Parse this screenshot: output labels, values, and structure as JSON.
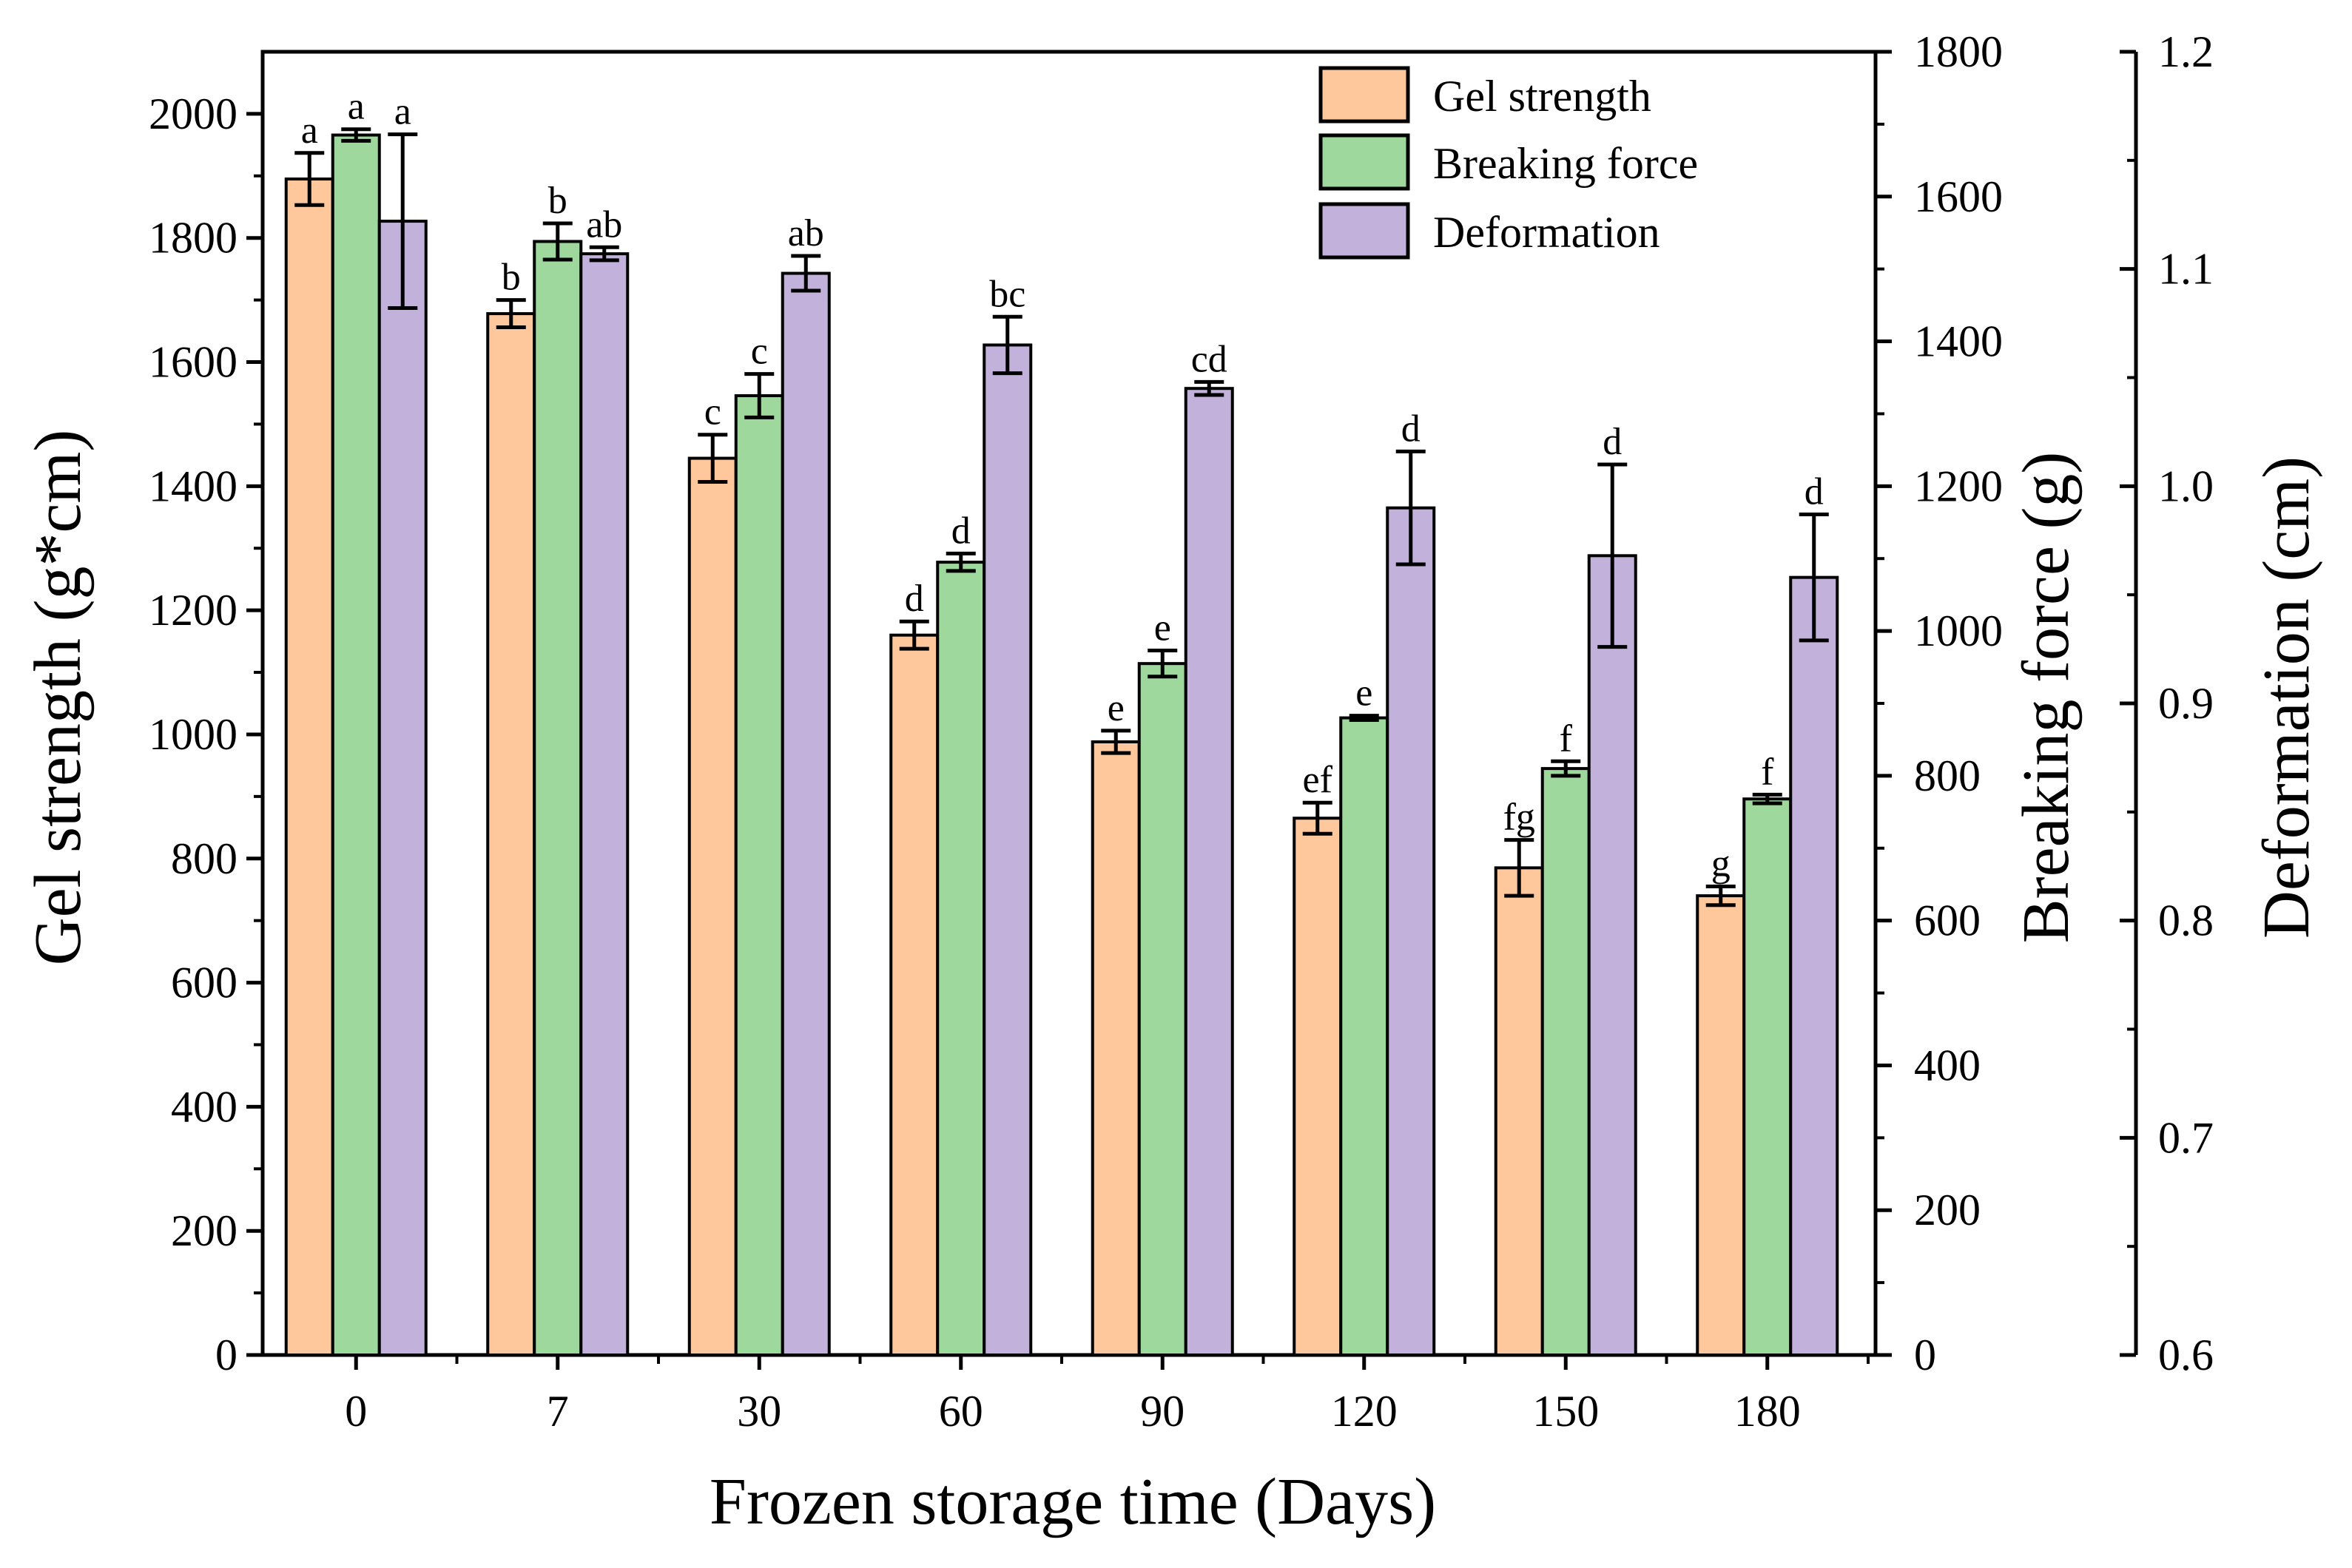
{
  "chart_data": {
    "type": "bar",
    "categories": [
      "0",
      "7",
      "30",
      "60",
      "90",
      "120",
      "150",
      "180"
    ],
    "xlabel": "Frozen storage time (Days)",
    "series": [
      {
        "name": "Gel strength",
        "axis": "left",
        "color": "#FFC89C",
        "values": [
          1895,
          1678,
          1445,
          1160,
          988,
          865,
          785,
          740
        ],
        "errors": [
          42,
          22,
          38,
          22,
          18,
          25,
          45,
          15
        ],
        "letters": [
          "a",
          "b",
          "c",
          "d",
          "e",
          "ef",
          "fg",
          "g"
        ]
      },
      {
        "name": "Breaking force",
        "axis": "right",
        "color": "#9ED89C",
        "values": [
          1685,
          1538,
          1325,
          1095,
          955,
          880,
          810,
          768
        ],
        "errors": [
          8,
          25,
          30,
          12,
          18,
          3,
          10,
          6
        ],
        "letters": [
          "a",
          "b",
          "c",
          "d",
          "e",
          "e",
          "f",
          "f"
        ]
      },
      {
        "name": "Deformation",
        "axis": "deformation",
        "color": "#C2B1DA",
        "values": [
          1.122,
          1.107,
          1.098,
          1.065,
          1.045,
          0.99,
          0.968,
          0.958
        ],
        "errors": [
          0.04,
          0.003,
          0.008,
          0.013,
          0.003,
          0.026,
          0.042,
          0.029
        ],
        "letters": [
          "a",
          "ab",
          "ab",
          "bc",
          "cd",
          "d",
          "d",
          "d"
        ]
      }
    ],
    "axes": {
      "left": {
        "label": "Gel strength (g*cm)",
        "min": 0,
        "max": 2100,
        "ticks": [
          0,
          200,
          400,
          600,
          800,
          1000,
          1200,
          1400,
          1600,
          1800,
          2000
        ]
      },
      "right": {
        "label": "Breaking force (g)",
        "min": 0,
        "max": 1800,
        "ticks": [
          0,
          200,
          400,
          600,
          800,
          1000,
          1200,
          1400,
          1600,
          1800
        ]
      },
      "deformation": {
        "label": "Deformation (cm)",
        "min": 0.6,
        "max": 1.2,
        "ticks": [
          "0.6",
          "0.7",
          "0.8",
          "0.9",
          "1.0",
          "1.1",
          "1.2"
        ]
      }
    },
    "legend": {
      "position": "top-right",
      "entries": [
        "Gel strength",
        "Breaking force",
        "Deformation"
      ]
    }
  }
}
